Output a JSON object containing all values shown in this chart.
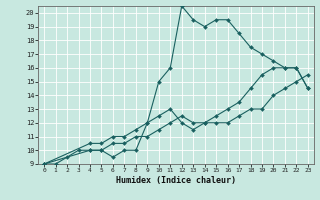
{
  "xlabel": "Humidex (Indice chaleur)",
  "xlim": [
    -0.5,
    23.5
  ],
  "ylim": [
    9,
    20.5
  ],
  "xticks": [
    0,
    1,
    2,
    3,
    4,
    5,
    6,
    7,
    8,
    9,
    10,
    11,
    12,
    13,
    14,
    15,
    16,
    17,
    18,
    19,
    20,
    21,
    22,
    23
  ],
  "yticks": [
    9,
    10,
    11,
    12,
    13,
    14,
    15,
    16,
    17,
    18,
    19,
    20
  ],
  "bg_color": "#c8e8e0",
  "line_color": "#1a6060",
  "grid_color": "#ffffff",
  "line1_x": [
    0,
    1,
    2,
    3,
    4,
    5,
    6,
    7,
    8,
    9,
    10,
    11,
    12,
    13,
    14,
    15,
    16,
    17,
    18,
    19,
    20,
    21,
    22,
    23
  ],
  "line1_y": [
    9.0,
    9.0,
    9.5,
    10.0,
    10.0,
    10.0,
    9.5,
    10.0,
    10.0,
    12.0,
    15.0,
    16.0,
    20.5,
    19.5,
    19.0,
    19.5,
    19.5,
    18.5,
    17.5,
    17.0,
    16.5,
    16.0,
    16.0,
    14.5
  ],
  "line2_x": [
    0,
    4,
    5,
    6,
    7,
    8,
    9,
    10,
    11,
    12,
    13,
    14,
    15,
    16,
    17,
    18,
    19,
    20,
    21,
    22,
    23
  ],
  "line2_y": [
    9.0,
    10.5,
    10.5,
    11.0,
    11.0,
    11.5,
    12.0,
    12.5,
    13.0,
    12.0,
    11.5,
    12.0,
    12.5,
    13.0,
    13.5,
    14.5,
    15.5,
    16.0,
    16.0,
    16.0,
    14.5
  ],
  "line3_x": [
    0,
    4,
    5,
    6,
    7,
    8,
    9,
    10,
    11,
    12,
    13,
    14,
    15,
    16,
    17,
    18,
    19,
    20,
    21,
    22,
    23
  ],
  "line3_y": [
    9.0,
    10.0,
    10.0,
    10.5,
    10.5,
    11.0,
    11.0,
    11.5,
    12.0,
    12.5,
    12.0,
    12.0,
    12.0,
    12.0,
    12.5,
    13.0,
    13.0,
    14.0,
    14.5,
    15.0,
    15.5
  ]
}
